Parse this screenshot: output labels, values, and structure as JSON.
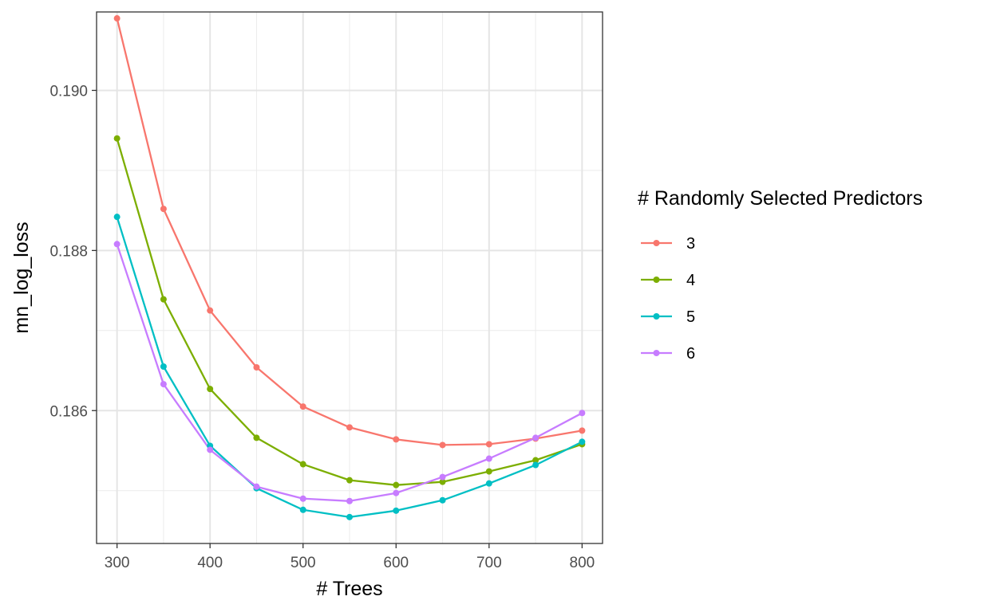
{
  "chart_data": {
    "type": "line",
    "title": "",
    "xlabel": "# Trees",
    "ylabel": "mn_log_loss",
    "xlim": [
      278,
      822
    ],
    "ylim": [
      0.18434,
      0.19098
    ],
    "x_ticks": [
      300,
      400,
      500,
      600,
      700,
      800
    ],
    "x_tick_labels": [
      "300",
      "400",
      "500",
      "600",
      "700",
      "800"
    ],
    "x_minor_ticks": [
      350,
      450,
      550,
      650,
      750
    ],
    "y_ticks": [
      0.186,
      0.188,
      0.19
    ],
    "y_tick_labels": [
      "0.186",
      "0.188",
      "0.190"
    ],
    "y_minor_ticks": [
      0.185,
      0.187,
      0.189
    ],
    "grid": true,
    "markers": true,
    "legend": {
      "title": "# Randomly Selected Predictors",
      "position": "right"
    },
    "x": [
      300,
      350,
      400,
      450,
      500,
      550,
      600,
      650,
      700,
      750,
      800
    ],
    "series": [
      {
        "name": "3",
        "color": "#F8766D",
        "values": [
          0.1909,
          0.18852,
          0.18725,
          0.18654,
          0.18605,
          0.18579,
          0.18564,
          0.18557,
          0.18558,
          0.18565,
          0.18575
        ]
      },
      {
        "name": "4",
        "color": "#7CAE00",
        "values": [
          0.1894,
          0.18739,
          0.18627,
          0.18566,
          0.18533,
          0.18513,
          0.18507,
          0.18511,
          0.18524,
          0.18538,
          0.18558
        ]
      },
      {
        "name": "5",
        "color": "#00BFC4",
        "values": [
          0.18842,
          0.18655,
          0.18556,
          0.18503,
          0.18476,
          0.18467,
          0.18475,
          0.18488,
          0.18509,
          0.18532,
          0.18561
        ]
      },
      {
        "name": "6",
        "color": "#C77CFF",
        "values": [
          0.18808,
          0.18633,
          0.18551,
          0.18505,
          0.1849,
          0.18487,
          0.18497,
          0.18517,
          0.1854,
          0.18566,
          0.18597
        ]
      }
    ]
  }
}
